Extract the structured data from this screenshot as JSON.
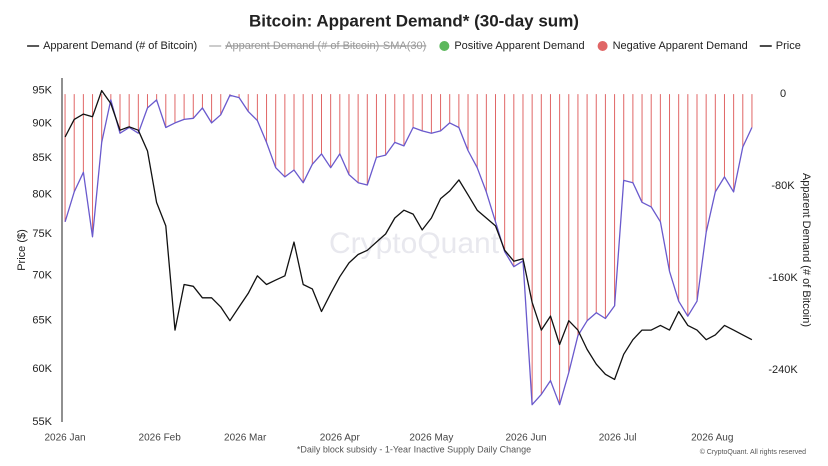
{
  "chart_data": {
    "type": "line",
    "title": "Bitcoin: Apparent Demand* (30-day sum)",
    "ylabel": "Price ($)",
    "y2label": "Apparent Demand (# of Bitcoin)",
    "watermark": "CryptoQuant",
    "note": "*Daily block subsidy - 1-Year Inactive Supply Daily Change",
    "credit": "© CryptoQuant. All rights reserved",
    "x": [
      0,
      3,
      6,
      9,
      12,
      15,
      18,
      21,
      24,
      27,
      30,
      33,
      36,
      39,
      42,
      45,
      48,
      51,
      54,
      57,
      60,
      63,
      66,
      69,
      72,
      75,
      78,
      81,
      84,
      87,
      90,
      93,
      96,
      99,
      102,
      105,
      108,
      111,
      114,
      117,
      120,
      123,
      126,
      129,
      132,
      135,
      138,
      141,
      144,
      147,
      150,
      153,
      156,
      159,
      162,
      165,
      168,
      171,
      174,
      177,
      180,
      183,
      186,
      189,
      192,
      195,
      198,
      201,
      204,
      207,
      210,
      213,
      216,
      219,
      222,
      225
    ],
    "xlim": [
      -1,
      226
    ],
    "xticks": [
      {
        "value": 0,
        "label": "2026 Jan"
      },
      {
        "value": 31,
        "label": "2026 Feb"
      },
      {
        "value": 59,
        "label": "2026 Mar"
      },
      {
        "value": 90,
        "label": "2026 Apr"
      },
      {
        "value": 120,
        "label": "2026 May"
      },
      {
        "value": 151,
        "label": "2026 Jun"
      },
      {
        "value": 181,
        "label": "2026 Jul"
      },
      {
        "value": 212,
        "label": "2026 Aug"
      }
    ],
    "ylog": true,
    "ylim": [
      55000,
      97000
    ],
    "yticks": [
      {
        "value": 55000,
        "label": "55K"
      },
      {
        "value": 60000,
        "label": "60K"
      },
      {
        "value": 65000,
        "label": "65K"
      },
      {
        "value": 70000,
        "label": "70K"
      },
      {
        "value": 75000,
        "label": "75K"
      },
      {
        "value": 80000,
        "label": "80K"
      },
      {
        "value": 85000,
        "label": "85K"
      },
      {
        "value": 90000,
        "label": "90K"
      },
      {
        "value": 95000,
        "label": "95K"
      }
    ],
    "y2lim": [
      -285000,
      14000
    ],
    "y2ticks": [
      0,
      {
        "value": -80000,
        "label": "-80K"
      },
      {
        "value": -160000,
        "label": "-160K"
      },
      {
        "value": -240000,
        "label": "-240K"
      }
    ],
    "grid": false,
    "series": [
      {
        "name": "Apparent Demand (# of Bitcoin)",
        "color": "#6a5acd",
        "axis": "y2",
        "values": [
          -111000,
          -85000,
          -68000,
          -124000,
          -42000,
          -5000,
          -34000,
          -29000,
          -34000,
          -12000,
          -5000,
          -29000,
          -25000,
          -22000,
          -21000,
          -12000,
          -25000,
          -18000,
          -1000,
          -3000,
          -15000,
          -23000,
          -42000,
          -64000,
          -72000,
          -66000,
          -77000,
          -61000,
          -52000,
          -64000,
          -52000,
          -70000,
          -77000,
          -79000,
          -55000,
          -53000,
          -42000,
          -45000,
          -29000,
          -32000,
          -34000,
          -32000,
          -25000,
          -29000,
          -49000,
          -64000,
          -85000,
          -111000,
          -137000,
          -150000,
          -145000,
          -270000,
          -261000,
          -249000,
          -270000,
          -242000,
          -210000,
          -197000,
          -190000,
          -195000,
          -184000,
          -75000,
          -77000,
          -94000,
          -98000,
          -111000,
          -154000,
          -180000,
          -193000,
          -180000,
          -120000,
          -85000,
          -72000,
          -85000,
          -46000,
          -29000
        ]
      },
      {
        "name": "Price",
        "color": "#111111",
        "values": [
          88000,
          90600,
          91400,
          91000,
          95000,
          93000,
          89000,
          89500,
          89000,
          86000,
          79000,
          76000,
          64000,
          69000,
          68800,
          67500,
          67500,
          66500,
          65000,
          66500,
          68000,
          70000,
          69000,
          69500,
          70000,
          74000,
          69000,
          68500,
          66000,
          68000,
          69900,
          71500,
          72500,
          73000,
          74000,
          75000,
          77000,
          78000,
          77500,
          75500,
          77000,
          79500,
          80500,
          82000,
          80000,
          78000,
          77000,
          76000,
          73000,
          71700,
          72000,
          67000,
          64000,
          65500,
          62500,
          65000,
          64000,
          62000,
          60500,
          59500,
          59000,
          61500,
          63000,
          64000,
          64000,
          64500,
          64000,
          66000,
          64500,
          64000,
          63000,
          63500,
          64500,
          64000,
          63500,
          63000
        ]
      }
    ],
    "sma": {
      "name": "Apparent Demand (# of Bitcoin)-SMA(30)",
      "color": "#bbbbbb",
      "hidden": true
    },
    "bar_colors": [
      {
        "name": "Positive Apparent Demand",
        "color": "#5cb85c"
      },
      {
        "name": "Negative Apparent Demand",
        "color": "#e06666"
      }
    ]
  }
}
